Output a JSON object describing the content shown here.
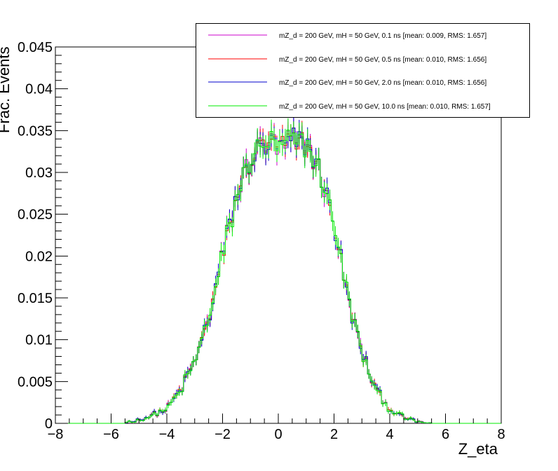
{
  "chart_data": {
    "type": "histogram",
    "xlabel": "Z_eta",
    "ylabel": "Frac. Events",
    "xlim": [
      -8,
      8
    ],
    "ylim": [
      0,
      0.045
    ],
    "x_ticks": [
      "−8",
      "−6",
      "−4",
      "−2",
      "0",
      "2",
      "4",
      "6",
      "8"
    ],
    "y_ticks": [
      "0",
      "0.005",
      "0.01",
      "0.015",
      "0.02",
      "0.025",
      "0.03",
      "0.035",
      "0.04",
      "0.045"
    ],
    "bins": {
      "low": -8,
      "high": 8,
      "count": 160
    },
    "legend_position": "top-right",
    "grid": false,
    "series": [
      {
        "name": "mZ_d = 200 GeV, mH = 50 GeV, 0.1 ns [mean: 0.009, RMS: 1.657]",
        "color": "#cc00cc",
        "mean": 0.009,
        "rms": 1.657
      },
      {
        "name": "mZ_d = 200 GeV, mH = 50 GeV, 0.5 ns [mean: 0.010, RMS: 1.656]",
        "color": "#ff0000",
        "mean": 0.01,
        "rms": 1.656
      },
      {
        "name": "mZ_d = 200 GeV, mH = 50 GeV, 2.0 ns [mean: 0.010, RMS: 1.656]",
        "color": "#0000cc",
        "mean": 0.01,
        "rms": 1.656
      },
      {
        "name": "mZ_d = 200 GeV, mH = 50 GeV, 10.0 ns [mean: 0.010, RMS: 1.657]",
        "color": "#00ee00",
        "mean": 0.01,
        "rms": 1.657
      }
    ],
    "shape_points": {
      "x": [
        -5.5,
        -5.0,
        -4.5,
        -4.0,
        -3.5,
        -3.0,
        -2.5,
        -2.0,
        -1.5,
        -1.0,
        -0.5,
        0.0,
        0.5,
        1.0,
        1.5,
        2.0,
        2.5,
        3.0,
        3.5,
        4.0,
        4.5,
        5.0,
        5.5
      ],
      "y": [
        0.0001,
        0.0004,
        0.001,
        0.0017,
        0.004,
        0.0075,
        0.0125,
        0.02,
        0.027,
        0.0315,
        0.0335,
        0.033,
        0.0335,
        0.0335,
        0.03,
        0.024,
        0.015,
        0.0085,
        0.004,
        0.0017,
        0.0007,
        0.0002,
        0.0
      ]
    }
  }
}
